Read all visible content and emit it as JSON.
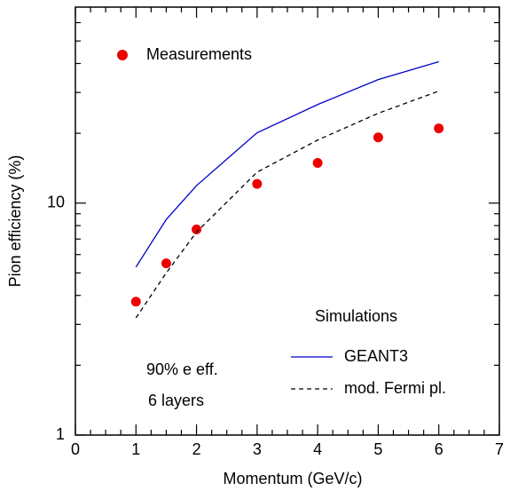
{
  "chart_data": {
    "type": "line",
    "xlabel": "Momentum (GeV/c)",
    "ylabel": "Pion efficiency (%)",
    "xlim": [
      0,
      7
    ],
    "xticks": [
      0,
      1,
      2,
      3,
      4,
      5,
      6,
      7
    ],
    "xminorticks": [
      0.25,
      0.5,
      0.75,
      1.25,
      1.5,
      1.75,
      2.25,
      2.5,
      2.75,
      3.25,
      3.5,
      3.75,
      4.25,
      4.5,
      4.75,
      5.25,
      5.5,
      5.75,
      6.25,
      6.5,
      6.75
    ],
    "ylim": [
      1,
      70
    ],
    "yscale": "log",
    "yticks": [
      1,
      10
    ],
    "yminorticks": [
      2,
      3,
      4,
      5,
      6,
      7,
      8,
      9,
      20,
      30,
      40,
      50,
      60
    ],
    "x": [
      1,
      1.5,
      2,
      3,
      4,
      5,
      6
    ],
    "series": [
      {
        "name": "Measurements",
        "color": "#ee0000",
        "style": "marker",
        "values": [
          3.76,
          5.5,
          7.7,
          12.1,
          14.9,
          19.2,
          21.0
        ]
      },
      {
        "name": "GEANT3",
        "color": "#0000cc",
        "style": "solid",
        "values": [
          5.3,
          8.5,
          11.9,
          20.1,
          26.6,
          34.1,
          40.7
        ]
      },
      {
        "name": "mod. Fermi pl.",
        "color": "#000000",
        "style": "dashed",
        "values": [
          3.2,
          5.0,
          7.5,
          13.6,
          18.7,
          24.4,
          30.4
        ]
      }
    ],
    "legend_title": "Simulations",
    "annotations": [
      "90% e eff.",
      "6 layers"
    ]
  }
}
